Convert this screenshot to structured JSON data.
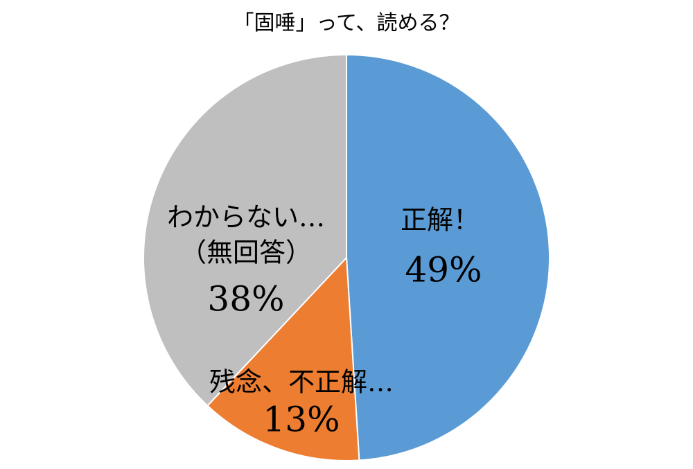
{
  "chart_data": {
    "type": "pie",
    "title": "「固唾」って、読める？",
    "categories": [
      "正解！",
      "残念、不正解…",
      "わからない…\n（無回答）"
    ],
    "values": [
      49,
      13,
      38
    ],
    "value_labels": [
      "49%",
      "13%",
      "38%"
    ],
    "colors": [
      "#5b9bd5",
      "#ed7d31",
      "#bfbfbf"
    ]
  }
}
